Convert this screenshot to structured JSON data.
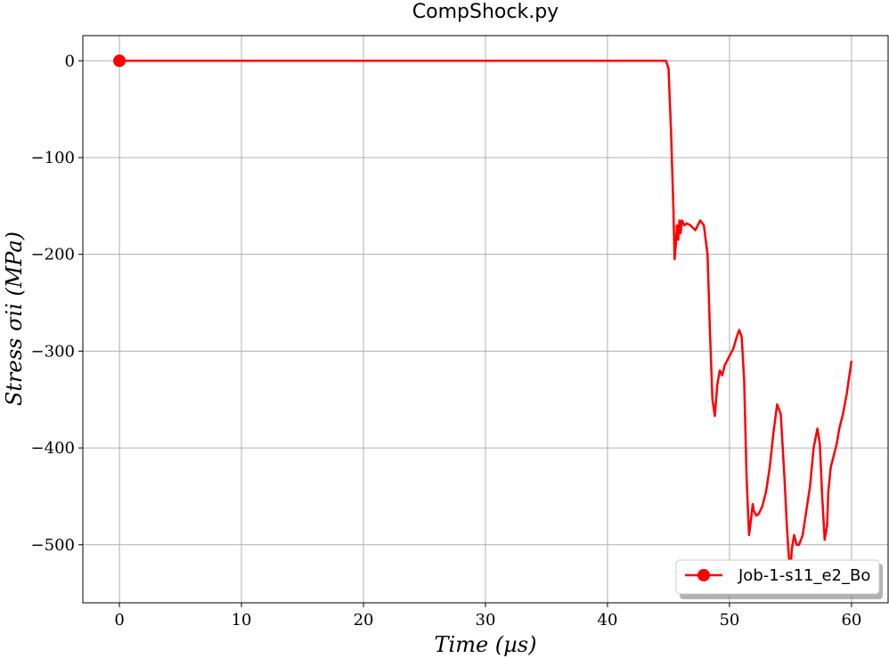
{
  "chart_data": {
    "type": "line",
    "title": "CompShock.py",
    "xlabel": "Time (µs)",
    "ylabel": "Stress σii (MPa)",
    "xlim": [
      -3,
      63
    ],
    "ylim": [
      -560,
      26
    ],
    "xticks": [
      0,
      10,
      20,
      30,
      40,
      50,
      60
    ],
    "yticks": [
      0,
      -100,
      -200,
      -300,
      -400,
      -500
    ],
    "xtick_labels": [
      "0",
      "10",
      "20",
      "30",
      "40",
      "50",
      "60"
    ],
    "ytick_labels": [
      "0",
      "−100",
      "−200",
      "−300",
      "−400",
      "−500"
    ],
    "grid": true,
    "legend_position": "lower-right",
    "series": [
      {
        "name": "Job-1-s11_e2_Bo",
        "color": "#ff0000",
        "marker": "circle",
        "marker_at_x": 0,
        "x": [
          0,
          44.8,
          45.0,
          45.2,
          45.4,
          45.5,
          45.6,
          45.7,
          45.8,
          45.9,
          46.0,
          46.1,
          46.3,
          46.5,
          46.8,
          47.2,
          47.6,
          47.9,
          48.2,
          48.4,
          48.6,
          48.8,
          49.0,
          49.2,
          49.4,
          49.6,
          49.8,
          50.0,
          50.3,
          50.6,
          50.8,
          51.0,
          51.2,
          51.4,
          51.6,
          51.8,
          51.9,
          52.0,
          52.2,
          52.4,
          52.7,
          53.0,
          53.3,
          53.6,
          53.9,
          54.2,
          54.5,
          54.7,
          54.9,
          55.0,
          55.1,
          55.3,
          55.5,
          55.7,
          56.0,
          56.3,
          56.6,
          56.9,
          57.2,
          57.4,
          57.6,
          57.8,
          58.0,
          58.1,
          58.3,
          58.5,
          58.8,
          59.0,
          59.3,
          59.6,
          60.0
        ],
        "y": [
          0,
          0,
          -8,
          -70,
          -150,
          -205,
          -190,
          -170,
          -185,
          -165,
          -178,
          -165,
          -170,
          -168,
          -170,
          -175,
          -165,
          -170,
          -200,
          -280,
          -350,
          -367,
          -335,
          -320,
          -325,
          -315,
          -310,
          -305,
          -298,
          -285,
          -278,
          -285,
          -330,
          -430,
          -490,
          -470,
          -458,
          -465,
          -470,
          -468,
          -460,
          -445,
          -420,
          -385,
          -355,
          -365,
          -430,
          -480,
          -520,
          -530,
          -505,
          -490,
          -500,
          -500,
          -490,
          -465,
          -440,
          -400,
          -380,
          -395,
          -450,
          -495,
          -480,
          -445,
          -420,
          -410,
          -395,
          -380,
          -365,
          -345,
          -310
        ]
      }
    ]
  }
}
